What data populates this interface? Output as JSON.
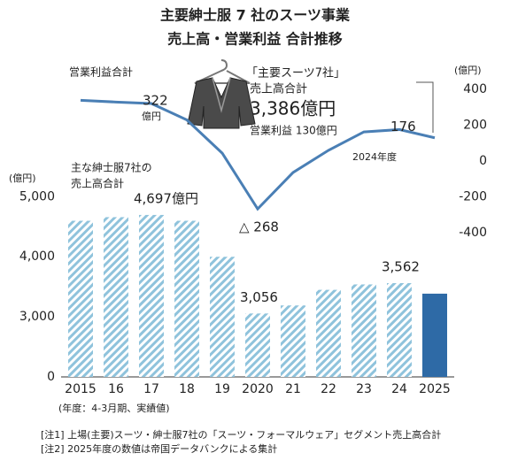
{
  "chart_data": {
    "type": "bar",
    "title": "主要紳士服 7 社のスーツ事業",
    "subtitle": "売上高・営業利益 合計推移",
    "categories": [
      "2015",
      "16",
      "17",
      "18",
      "19",
      "2020",
      "21",
      "22",
      "23",
      "24",
      "2025"
    ],
    "series": [
      {
        "name": [
          "主な紳士服7社の",
          "売上高合計"
        ],
        "type": "bar",
        "colors": [
          "#8fc3dc",
          "#8fc3dc",
          "#8fc3dc",
          "#8fc3dc",
          "#8fc3dc",
          "#8fc3dc",
          "#8fc3dc",
          "#8fc3dc",
          "#8fc3dc",
          "#8fc3dc",
          "#2e6aa6"
        ],
        "hatched": [
          true,
          true,
          true,
          true,
          true,
          true,
          true,
          true,
          true,
          true,
          false
        ],
        "values": [
          4600,
          4660,
          4697,
          4600,
          4000,
          3056,
          3190,
          3450,
          3540,
          3562,
          3386
        ],
        "value_labels": [
          null,
          null,
          "4,697億円",
          null,
          null,
          "3,056",
          null,
          null,
          null,
          "3,562",
          null
        ]
      },
      {
        "name": [
          "営業利益合計"
        ],
        "type": "line",
        "axis": "y2",
        "color": "#4a7fb5",
        "values": [
          340,
          330,
          322,
          230,
          44,
          -268,
          -64,
          60,
          163,
          176,
          130
        ],
        "value_labels": [
          null,
          null,
          "322",
          null,
          null,
          "△ 268",
          null,
          null,
          null,
          "176",
          null
        ]
      }
    ],
    "ylim": [
      0,
      5300
    ],
    "axis_break": [
      0,
      2000
    ],
    "yticks": [
      0,
      {
        "value": 3000,
        "label": "3,000"
      },
      {
        "value": 4000,
        "label": "4,000"
      },
      {
        "value": 5000,
        "label": "5,000"
      }
    ],
    "y2lim": [
      -500,
      500
    ],
    "y2ticks": [
      400,
      200,
      0,
      -200,
      -400
    ],
    "y_unit": "(億円)",
    "y2_unit": "(億円)",
    "annotations": [
      "億円",
      "「主要スーツ7社」",
      "売上高合計",
      "3,386億円",
      "営業利益 130億円",
      "2024年度"
    ],
    "x_note": "(年度：4-3月期、実績値)",
    "notes": [
      "[注1] 上場(主要)スーツ・紳士服7社の「スーツ・フォーマルウェア」セグメント売上高合計",
      "[注2] 2025年度の数値は帝国データバンクによる集計"
    ],
    "grid": false
  }
}
